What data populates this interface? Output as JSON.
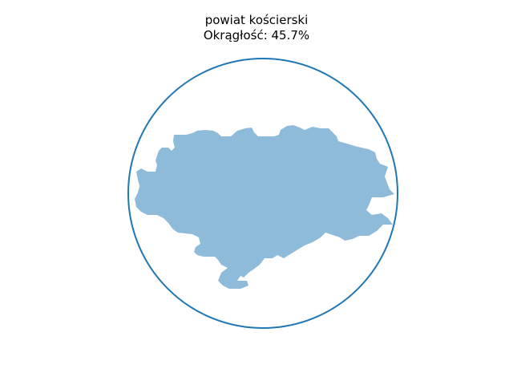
{
  "chart_data": {
    "type": "shape",
    "title_lines": [
      "powiat kościerski",
      "Okrągłość: 45.7%"
    ],
    "region_name": "powiat kościerski",
    "roundness_label": "Okrągłość:",
    "roundness_percent": 45.7,
    "roundness_text": "Okrągłość: 45.7%",
    "axes_visible": false,
    "grid": false,
    "colors": {
      "circle": "#1f77b4",
      "shape_fill": "#8fbbdb",
      "background": "#ffffff"
    }
  }
}
